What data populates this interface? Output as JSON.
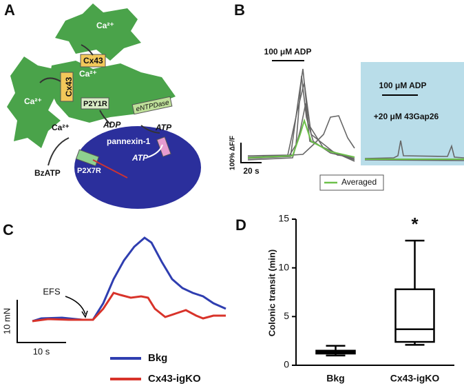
{
  "panel_labels": [
    "A",
    "B",
    "C",
    "D"
  ],
  "diagram": {
    "cell_top": "Ca²⁺",
    "cell_middle": "Ca²⁺",
    "cell_left": "Ca²⁺",
    "channel_top": "Cx43",
    "channel_left": "Cx43",
    "receptor": "P2Y1R",
    "enzyme": "eNTPDase",
    "adp": "ADP",
    "atp_out": "ATP",
    "pannexin": "pannexin-1",
    "atp_in": "ATP",
    "calcium_in": "Ca²⁺",
    "p2x7r": "P2X7R",
    "agonist": "BzATP"
  },
  "panel_b": {
    "stimulus_left": "100 μM ADP",
    "stimulus_right": "100 μM ADP",
    "blocker": "+20 μM 43Gap26",
    "scale_y": "100% ΔF/F",
    "scale_x": "20 s",
    "legend": "Averaged"
  },
  "panel_c": {
    "stimulus": "EFS",
    "scale_y": "10 mN",
    "scale_x": "10 s",
    "legend": [
      {
        "name": "Bkg",
        "color": "#2f3eb0"
      },
      {
        "name": "Cx43-igKO",
        "color": "#d8332a"
      }
    ]
  },
  "chart_data": {
    "type": "box",
    "ylabel": "Colonic transit (min)",
    "categories": [
      "Bkg",
      "Cx43-igKO"
    ],
    "boxes": [
      {
        "min": 1.0,
        "q1": 1.2,
        "median": 1.35,
        "q3": 1.5,
        "max": 2.0
      },
      {
        "min": 2.1,
        "q1": 2.4,
        "median": 3.7,
        "q3": 7.8,
        "max": 12.8
      }
    ],
    "annotation": "*",
    "color": "#000000",
    "ylim": [
      0,
      15
    ],
    "yticks": [
      0,
      5,
      10,
      15
    ]
  }
}
